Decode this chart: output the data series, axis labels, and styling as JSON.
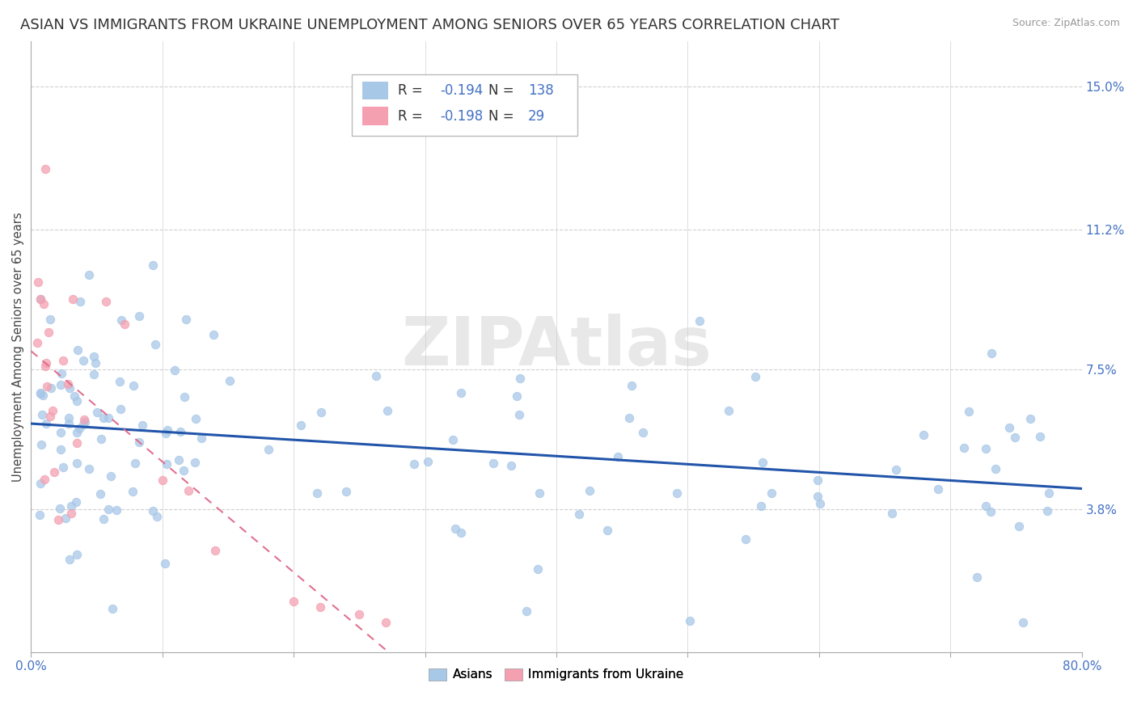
{
  "title": "ASIAN VS IMMIGRANTS FROM UKRAINE UNEMPLOYMENT AMONG SENIORS OVER 65 YEARS CORRELATION CHART",
  "source": "Source: ZipAtlas.com",
  "ylabel": "Unemployment Among Seniors over 65 years",
  "xlim": [
    0.0,
    0.8
  ],
  "ylim": [
    0.0,
    0.162
  ],
  "xticks": [
    0.0,
    0.1,
    0.2,
    0.3,
    0.4,
    0.5,
    0.6,
    0.7,
    0.8
  ],
  "xticklabels": [
    "0.0%",
    "",
    "",
    "",
    "",
    "",
    "",
    "",
    "80.0%"
  ],
  "ytick_positions": [
    0.038,
    0.075,
    0.112,
    0.15
  ],
  "ytick_labels": [
    "3.8%",
    "7.5%",
    "11.2%",
    "15.0%"
  ],
  "grid_color": "#d0d0d0",
  "background_color": "#ffffff",
  "asian_color": "#a8c8e8",
  "ukraine_color": "#f4a0b0",
  "asian_line_color": "#2255aa",
  "ukraine_line_color": "#e07090",
  "legend_R_asian": "-0.194",
  "legend_N_asian": "138",
  "legend_R_ukraine": "-0.198",
  "legend_N_ukraine": "29",
  "title_fontsize": 13,
  "label_fontsize": 10.5,
  "tick_fontsize": 11,
  "tick_color": "#4472c4",
  "asian_seed": 7,
  "ukraine_seed": 12
}
